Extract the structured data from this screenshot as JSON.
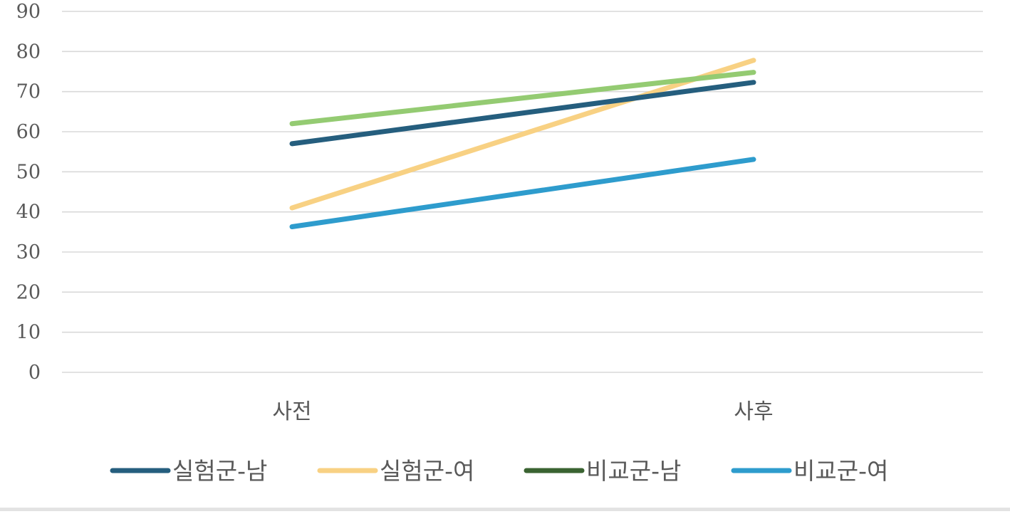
{
  "chart_data": {
    "type": "line",
    "categories": [
      "사전",
      "사후"
    ],
    "ylim": [
      0,
      90
    ],
    "yticks": [
      0,
      10,
      20,
      30,
      40,
      50,
      60,
      70,
      80,
      90
    ],
    "grid": true,
    "legend_position": "bottom",
    "series": [
      {
        "name": "실험군-남",
        "values": [
          57,
          72.3
        ],
        "color": "#255e7e"
      },
      {
        "name": "실험군-여",
        "values": [
          41,
          77.8
        ],
        "color": "#f8d183"
      },
      {
        "name": "비교군-남",
        "values": [
          62,
          74.8
        ],
        "color": "#94cb72"
      },
      {
        "name": "비교군-여",
        "values": [
          36.3,
          53.1
        ],
        "color": "#2e9ccd"
      }
    ],
    "legend_colors": [
      "#255e7e",
      "#f8d183",
      "#3a6331",
      "#2e9ccd"
    ]
  }
}
